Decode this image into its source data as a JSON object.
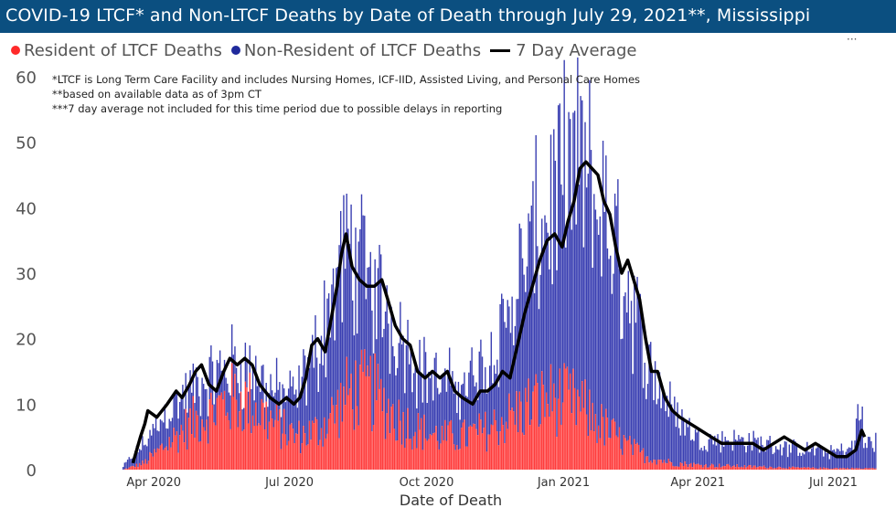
{
  "title": "COVID-19 LTCF* and Non-LTCF Deaths by Date of Death through July 29, 2021**, Mississippi",
  "legend": {
    "resident": "Resident of LTCF Deaths",
    "nonresident": "Non-Resident of LTCF Deaths",
    "average": "7 Day Average"
  },
  "notes": [
    "*LTCF is Long Term Care Facility and includes Nursing Homes, ICF-IID, Assisted Living, and Personal Care Homes",
    "**based on available data as of 3pm CT",
    "***7 day average not included for this time period due to possible delays in reporting"
  ],
  "colors": {
    "title_bg": "#0b4f80",
    "resident": "#ff3b3b",
    "nonresident": "#3a3fb2",
    "average": "#000000",
    "shade": "#d9d9d9"
  },
  "chart_data": {
    "type": "bar",
    "stacked": true,
    "xlabel": "Date of Death",
    "ylabel": "",
    "ylim": [
      0,
      60
    ],
    "yticks": [
      0,
      10,
      20,
      30,
      40,
      50,
      60
    ],
    "xticks": [
      "Apr 2020",
      "Jul 2020",
      "Oct 2020",
      "Jan 2021",
      "Apr 2021",
      "Jul 2021"
    ],
    "x_start": "2020-03-11",
    "x_end": "2021-07-29",
    "series": [
      {
        "name": "Resident of LTCF Deaths",
        "kind": "bar",
        "points": [
          [
            "2020-03-11",
            0
          ],
          [
            "2020-03-25",
            1
          ],
          [
            "2020-04-10",
            4
          ],
          [
            "2020-04-25",
            7
          ],
          [
            "2020-05-10",
            9
          ],
          [
            "2020-05-25",
            11
          ],
          [
            "2020-06-05",
            10
          ],
          [
            "2020-06-20",
            7
          ],
          [
            "2020-07-05",
            5
          ],
          [
            "2020-07-20",
            6
          ],
          [
            "2020-08-01",
            9
          ],
          [
            "2020-08-10",
            12
          ],
          [
            "2020-08-25",
            12
          ],
          [
            "2020-09-10",
            8
          ],
          [
            "2020-09-25",
            6
          ],
          [
            "2020-10-10",
            5
          ],
          [
            "2020-10-25",
            5
          ],
          [
            "2020-11-10",
            6
          ],
          [
            "2020-11-25",
            8
          ],
          [
            "2020-12-10",
            10
          ],
          [
            "2020-12-25",
            11
          ],
          [
            "2021-01-10",
            10
          ],
          [
            "2021-01-25",
            7
          ],
          [
            "2021-02-10",
            4
          ],
          [
            "2021-02-25",
            2
          ],
          [
            "2021-03-15",
            1
          ],
          [
            "2021-04-01",
            0.7
          ],
          [
            "2021-05-01",
            0.5
          ],
          [
            "2021-06-01",
            0.3
          ],
          [
            "2021-07-01",
            0.2
          ],
          [
            "2021-07-29",
            0.2
          ]
        ]
      },
      {
        "name": "Non-Resident of LTCF Deaths",
        "kind": "bar",
        "points": [
          [
            "2020-03-11",
            0.5
          ],
          [
            "2020-03-25",
            3
          ],
          [
            "2020-04-10",
            5
          ],
          [
            "2020-04-25",
            5
          ],
          [
            "2020-05-10",
            5
          ],
          [
            "2020-05-25",
            5
          ],
          [
            "2020-06-05",
            5
          ],
          [
            "2020-06-20",
            5
          ],
          [
            "2020-07-05",
            6
          ],
          [
            "2020-07-20",
            13
          ],
          [
            "2020-08-01",
            20
          ],
          [
            "2020-08-10",
            22
          ],
          [
            "2020-08-25",
            16
          ],
          [
            "2020-09-10",
            14
          ],
          [
            "2020-09-25",
            10
          ],
          [
            "2020-10-10",
            8
          ],
          [
            "2020-10-25",
            8
          ],
          [
            "2020-11-10",
            10
          ],
          [
            "2020-11-25",
            16
          ],
          [
            "2020-12-10",
            24
          ],
          [
            "2020-12-25",
            30
          ],
          [
            "2021-01-10",
            36
          ],
          [
            "2021-01-25",
            33
          ],
          [
            "2021-02-10",
            26
          ],
          [
            "2021-02-25",
            15
          ],
          [
            "2021-03-15",
            8
          ],
          [
            "2021-04-01",
            4
          ],
          [
            "2021-05-01",
            4
          ],
          [
            "2021-06-01",
            3
          ],
          [
            "2021-07-01",
            2.5
          ],
          [
            "2021-07-29",
            4
          ]
        ]
      },
      {
        "name": "7 Day Average",
        "kind": "line",
        "points": [
          [
            "2020-03-18",
            1
          ],
          [
            "2020-03-23",
            5
          ],
          [
            "2020-03-26",
            7
          ],
          [
            "2020-03-28",
            9
          ],
          [
            "2020-04-03",
            8
          ],
          [
            "2020-04-10",
            10
          ],
          [
            "2020-04-16",
            12
          ],
          [
            "2020-04-20",
            11
          ],
          [
            "2020-04-25",
            13
          ],
          [
            "2020-04-29",
            15
          ],
          [
            "2020-05-03",
            16
          ],
          [
            "2020-05-08",
            13
          ],
          [
            "2020-05-13",
            12
          ],
          [
            "2020-05-18",
            15
          ],
          [
            "2020-05-22",
            17
          ],
          [
            "2020-05-27",
            16
          ],
          [
            "2020-06-01",
            17
          ],
          [
            "2020-06-06",
            16
          ],
          [
            "2020-06-11",
            13
          ],
          [
            "2020-06-18",
            11
          ],
          [
            "2020-06-24",
            10
          ],
          [
            "2020-06-29",
            11
          ],
          [
            "2020-07-04",
            10
          ],
          [
            "2020-07-08",
            11
          ],
          [
            "2020-07-12",
            14
          ],
          [
            "2020-07-16",
            19
          ],
          [
            "2020-07-20",
            20
          ],
          [
            "2020-07-25",
            18
          ],
          [
            "2020-07-29",
            23
          ],
          [
            "2020-08-02",
            28
          ],
          [
            "2020-08-05",
            33
          ],
          [
            "2020-08-08",
            36
          ],
          [
            "2020-08-12",
            31
          ],
          [
            "2020-08-17",
            29
          ],
          [
            "2020-08-22",
            28
          ],
          [
            "2020-08-27",
            28
          ],
          [
            "2020-09-01",
            29
          ],
          [
            "2020-09-05",
            26
          ],
          [
            "2020-09-10",
            22
          ],
          [
            "2020-09-15",
            20
          ],
          [
            "2020-09-20",
            19
          ],
          [
            "2020-09-25",
            15
          ],
          [
            "2020-09-30",
            14
          ],
          [
            "2020-10-05",
            15
          ],
          [
            "2020-10-10",
            14
          ],
          [
            "2020-10-15",
            15
          ],
          [
            "2020-10-20",
            12
          ],
          [
            "2020-10-25",
            11
          ],
          [
            "2020-11-01",
            10
          ],
          [
            "2020-11-06",
            12
          ],
          [
            "2020-11-11",
            12
          ],
          [
            "2020-11-16",
            13
          ],
          [
            "2020-11-21",
            15
          ],
          [
            "2020-11-26",
            14
          ],
          [
            "2020-12-01",
            19
          ],
          [
            "2020-12-06",
            24
          ],
          [
            "2020-12-11",
            28
          ],
          [
            "2020-12-16",
            32
          ],
          [
            "2020-12-21",
            35
          ],
          [
            "2020-12-26",
            36
          ],
          [
            "2020-12-31",
            34
          ],
          [
            "2021-01-04",
            38
          ],
          [
            "2021-01-08",
            41
          ],
          [
            "2021-01-12",
            46
          ],
          [
            "2021-01-16",
            47
          ],
          [
            "2021-01-20",
            46
          ],
          [
            "2021-01-24",
            45
          ],
          [
            "2021-01-28",
            41
          ],
          [
            "2021-02-01",
            39
          ],
          [
            "2021-02-05",
            34
          ],
          [
            "2021-02-09",
            30
          ],
          [
            "2021-02-13",
            32
          ],
          [
            "2021-02-17",
            29
          ],
          [
            "2021-02-21",
            26
          ],
          [
            "2021-02-25",
            20
          ],
          [
            "2021-03-01",
            15
          ],
          [
            "2021-03-05",
            15
          ],
          [
            "2021-03-10",
            11
          ],
          [
            "2021-03-15",
            9
          ],
          [
            "2021-03-20",
            8
          ],
          [
            "2021-03-27",
            7
          ],
          [
            "2021-04-03",
            6
          ],
          [
            "2021-04-10",
            5
          ],
          [
            "2021-04-17",
            4
          ],
          [
            "2021-04-24",
            4
          ],
          [
            "2021-05-01",
            4
          ],
          [
            "2021-05-08",
            4
          ],
          [
            "2021-05-15",
            3
          ],
          [
            "2021-05-22",
            4
          ],
          [
            "2021-05-29",
            5
          ],
          [
            "2021-06-05",
            4
          ],
          [
            "2021-06-12",
            3
          ],
          [
            "2021-06-19",
            4
          ],
          [
            "2021-06-26",
            3
          ],
          [
            "2021-07-03",
            2
          ],
          [
            "2021-07-10",
            2
          ],
          [
            "2021-07-16",
            3
          ],
          [
            "2021-07-20",
            6
          ],
          [
            "2021-07-22",
            5
          ]
        ]
      }
    ]
  }
}
